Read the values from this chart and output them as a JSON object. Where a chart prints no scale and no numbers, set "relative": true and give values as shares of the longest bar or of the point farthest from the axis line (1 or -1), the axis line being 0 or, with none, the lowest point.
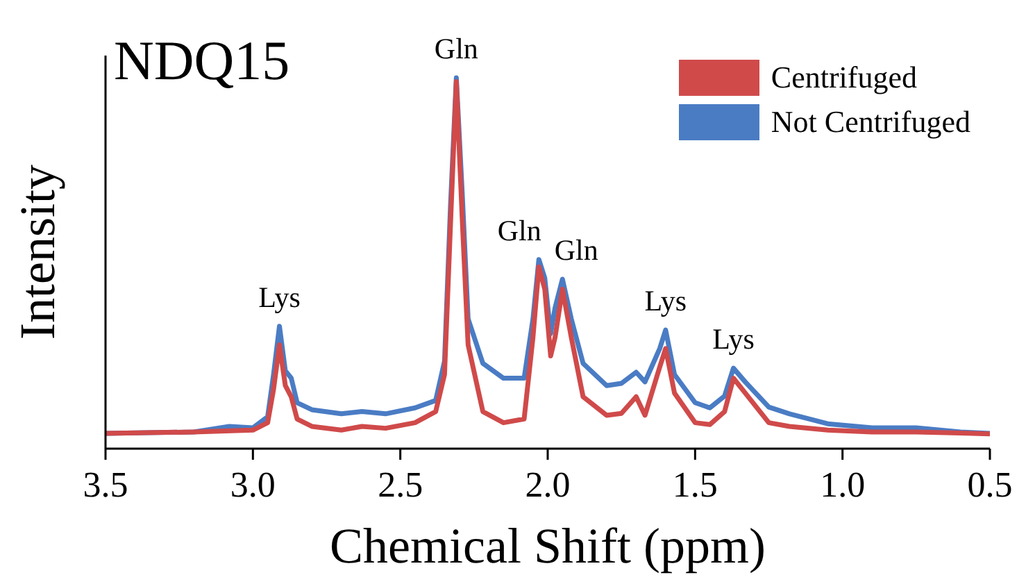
{
  "chart_data": {
    "type": "line",
    "title": "NDQ15",
    "xlabel": "Chemical Shift (ppm)",
    "ylabel": "Intensity",
    "relative": true,
    "xlim": [
      3.5,
      0.5
    ],
    "xticks": [
      {
        "value": 3.5,
        "label": "3.5"
      },
      {
        "value": 3.0,
        "label": "3.0"
      },
      {
        "value": 2.5,
        "label": "2.5"
      },
      {
        "value": 2.0,
        "label": "2.0"
      },
      {
        "value": 1.5,
        "label": "1.5"
      },
      {
        "value": 1.0,
        "label": "1.0"
      },
      {
        "value": 0.5,
        "label": "0.5"
      }
    ],
    "tick_labels": "x",
    "legend": "top right",
    "grid": false,
    "marker": "none",
    "line_style": "solid",
    "series": [
      {
        "name": "Not Centrifuged",
        "color": "#4a7cc4",
        "x": [
          3.5,
          3.2,
          3.08,
          3.0,
          2.95,
          2.93,
          2.91,
          2.89,
          2.87,
          2.85,
          2.8,
          2.7,
          2.63,
          2.55,
          2.45,
          2.38,
          2.35,
          2.33,
          2.31,
          2.29,
          2.27,
          2.22,
          2.15,
          2.08,
          2.05,
          2.03,
          2.01,
          1.99,
          1.975,
          1.95,
          1.92,
          1.88,
          1.8,
          1.75,
          1.7,
          1.67,
          1.62,
          1.6,
          1.57,
          1.5,
          1.45,
          1.4,
          1.37,
          1.33,
          1.25,
          1.18,
          1.05,
          0.9,
          0.75,
          0.6,
          0.5
        ],
        "values": [
          0.041,
          0.045,
          0.06,
          0.056,
          0.086,
          0.2,
          0.33,
          0.21,
          0.19,
          0.124,
          0.105,
          0.094,
          0.1,
          0.094,
          0.11,
          0.13,
          0.236,
          0.65,
          1,
          0.69,
          0.35,
          0.23,
          0.19,
          0.19,
          0.35,
          0.51,
          0.46,
          0.31,
          0.38,
          0.457,
          0.35,
          0.23,
          0.17,
          0.176,
          0.206,
          0.18,
          0.27,
          0.32,
          0.2,
          0.124,
          0.11,
          0.142,
          0.217,
          0.18,
          0.112,
          0.094,
          0.067,
          0.056,
          0.056,
          0.045,
          0.041
        ]
      },
      {
        "name": "Centrifuged",
        "color": "#d04a4a",
        "x": [
          3.5,
          3.2,
          3.0,
          2.95,
          2.93,
          2.91,
          2.89,
          2.87,
          2.85,
          2.8,
          2.7,
          2.63,
          2.55,
          2.45,
          2.38,
          2.35,
          2.33,
          2.31,
          2.29,
          2.27,
          2.22,
          2.15,
          2.08,
          2.05,
          2.03,
          2.01,
          1.99,
          1.975,
          1.95,
          1.92,
          1.88,
          1.8,
          1.75,
          1.7,
          1.67,
          1.62,
          1.6,
          1.57,
          1.5,
          1.45,
          1.4,
          1.37,
          1.33,
          1.25,
          1.18,
          1.05,
          0.9,
          0.75,
          0.6,
          0.5
        ],
        "values": [
          0.041,
          0.045,
          0.05,
          0.07,
          0.16,
          0.28,
          0.17,
          0.14,
          0.08,
          0.06,
          0.05,
          0.06,
          0.055,
          0.07,
          0.1,
          0.2,
          0.6,
          0.99,
          0.62,
          0.28,
          0.1,
          0.07,
          0.08,
          0.3,
          0.49,
          0.43,
          0.25,
          0.3,
          0.43,
          0.3,
          0.14,
          0.09,
          0.095,
          0.14,
          0.09,
          0.22,
          0.27,
          0.15,
          0.07,
          0.065,
          0.1,
          0.19,
          0.15,
          0.07,
          0.06,
          0.05,
          0.045,
          0.045,
          0.042,
          0.04
        ]
      }
    ],
    "annotations": [
      {
        "text": "Lys",
        "x": 2.91,
        "y": 0.33
      },
      {
        "text": "Gln",
        "x": 2.31,
        "y": 1
      },
      {
        "text": "Gln",
        "x": 2.03,
        "y": 0.51
      },
      {
        "text": "Gln",
        "x": 1.95,
        "y": 0.457
      },
      {
        "text": "Lys",
        "x": 1.6,
        "y": 0.32
      },
      {
        "text": "Lys",
        "x": 1.37,
        "y": 0.217
      }
    ]
  }
}
